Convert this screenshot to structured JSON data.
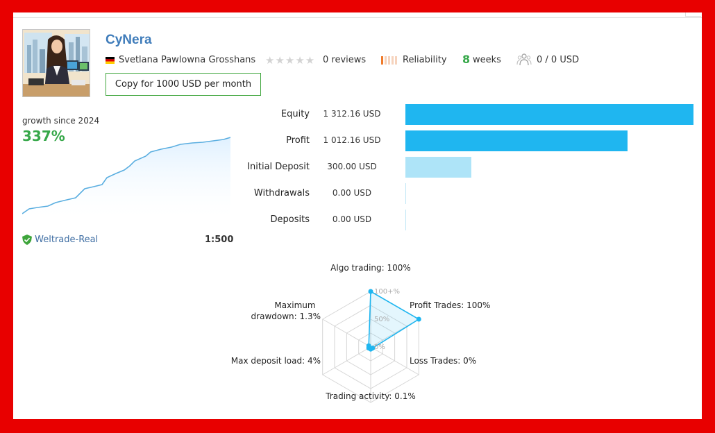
{
  "provider": {
    "title": "CyNera",
    "author": "Svetlana Pawlowna Grosshans",
    "reviews": "0 reviews",
    "reliability_label": "Reliability",
    "weeks_number": "8",
    "weeks_label": "weeks",
    "subscribers": "0 / 0 USD",
    "copy_button": "Copy for 1000 USD per month"
  },
  "growth": {
    "label": "growth since 2024",
    "value": "337%",
    "broker": "Weltrade-Real",
    "leverage": "1:500"
  },
  "metrics": [
    {
      "label": "Equity",
      "value": "1 312.16 USD",
      "amount": 1312.16
    },
    {
      "label": "Profit",
      "value": "1 012.16 USD",
      "amount": 1012.16
    },
    {
      "label": "Initial Deposit",
      "value": "300.00 USD",
      "amount": 300.0
    },
    {
      "label": "Withdrawals",
      "value": "0.00 USD",
      "amount": 0
    },
    {
      "label": "Deposits",
      "value": "0.00 USD",
      "amount": 0
    }
  ],
  "radar": {
    "top": "Algo trading: 100%",
    "top_right": "Profit Trades: 100%",
    "bottom_right": "Loss Trades: 0%",
    "bottom": "Trading activity: 0.1%",
    "bottom_left": "Max deposit load: 4%",
    "top_left_1": "Maximum",
    "top_left_2": "drawdown: 1.3%",
    "scale_100": "100+%",
    "scale_50": "50%",
    "scale_0": "0%",
    "values": {
      "algo": 100,
      "profit": 100,
      "loss": 0,
      "activity": 0.1,
      "load": 4,
      "drawdown": 1.3
    }
  },
  "colors": {
    "accent": "#3f7cba",
    "green": "#37a84a",
    "bar_dark": "#1fb6f0",
    "bar_light": "#aee4f8",
    "frame": "#e80000"
  }
}
